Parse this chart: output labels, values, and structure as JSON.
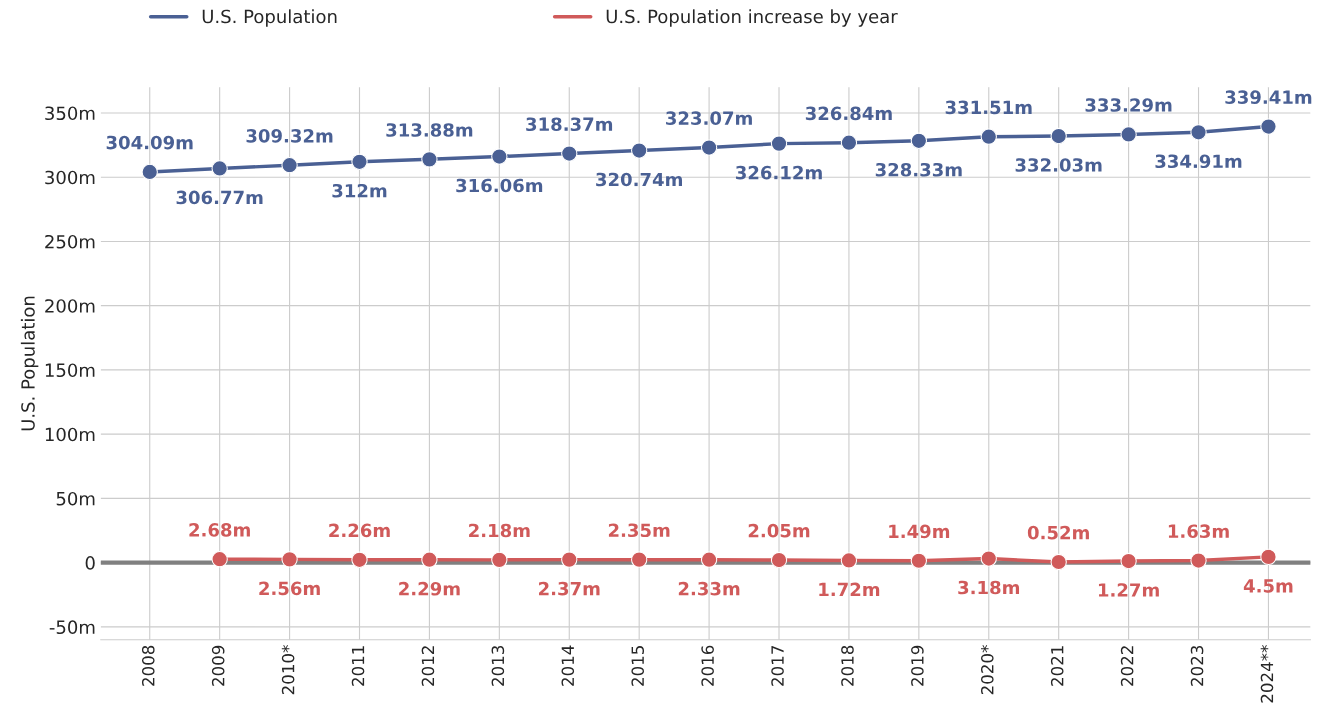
{
  "chart_data": {
    "type": "line",
    "ylabel": "U.S. Population",
    "categories": [
      "2008",
      "2009",
      "2010*",
      "2011",
      "2012",
      "2013",
      "2014",
      "2015",
      "2016",
      "2017",
      "2018",
      "2019",
      "2020*",
      "2021",
      "2022",
      "2023",
      "2024**"
    ],
    "series": [
      {
        "name": "U.S. Population",
        "color": "#4a6094",
        "values": [
          304.09,
          306.77,
          309.32,
          312,
          313.88,
          316.06,
          318.37,
          320.74,
          323.07,
          326.12,
          326.84,
          328.33,
          331.51,
          332.03,
          333.29,
          334.91,
          339.41
        ],
        "value_labels": [
          "304.09m",
          "306.77m",
          "309.32m",
          "312m",
          "313.88m",
          "316.06m",
          "318.37m",
          "320.74m",
          "323.07m",
          "326.12m",
          "326.84m",
          "328.33m",
          "331.51m",
          "332.03m",
          "333.29m",
          "334.91m",
          "339.41m"
        ]
      },
      {
        "name": "U.S. Population increase by year",
        "color": "#d05a5a",
        "values": [
          null,
          2.68,
          2.56,
          2.26,
          2.29,
          2.18,
          2.37,
          2.35,
          2.33,
          2.05,
          1.72,
          1.49,
          3.18,
          0.52,
          1.27,
          1.63,
          4.5
        ],
        "value_labels": [
          null,
          "2.68m",
          "2.56m",
          "2.26m",
          "2.29m",
          "2.18m",
          "2.37m",
          "2.35m",
          "2.33m",
          "2.05m",
          "1.72m",
          "1.49m",
          "3.18m",
          "0.52m",
          "1.27m",
          "1.63m",
          "4.5m"
        ]
      }
    ],
    "ylim": [
      -60,
      370
    ],
    "yticks": [
      {
        "value": -50,
        "label": "-50m"
      },
      {
        "value": 0,
        "label": "0"
      },
      {
        "value": 50,
        "label": "50m"
      },
      {
        "value": 100,
        "label": "100m"
      },
      {
        "value": 150,
        "label": "150m"
      },
      {
        "value": 200,
        "label": "200m"
      },
      {
        "value": 250,
        "label": "250m"
      },
      {
        "value": 300,
        "label": "300m"
      },
      {
        "value": 350,
        "label": "350m"
      }
    ],
    "ref_lines": [
      {
        "axis": "y",
        "value": 0,
        "color": "#808080"
      }
    ],
    "grid": true,
    "legend": "top",
    "marker": "circle",
    "line_style": "solid"
  }
}
